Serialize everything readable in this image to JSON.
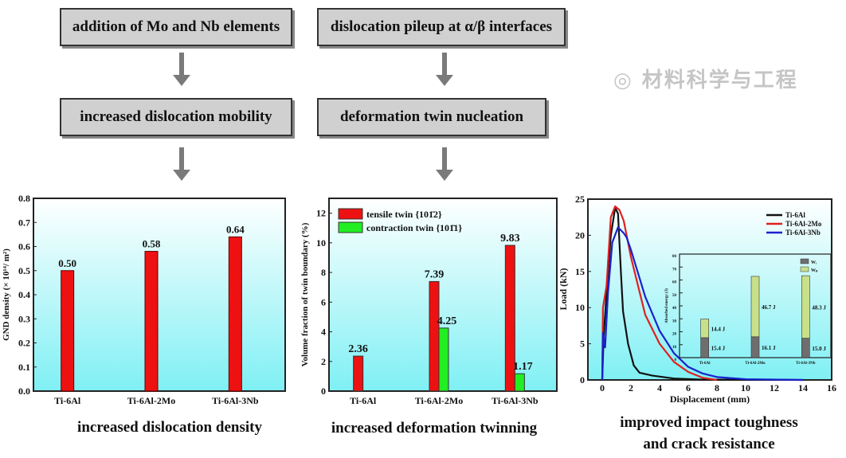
{
  "flow": {
    "box1": "addition of Mo and Nb elements",
    "box2": "dislocation pileup at α/β interfaces",
    "box3": "increased dislocation mobility",
    "box4": "deformation twin nucleation"
  },
  "captions": {
    "c1": "increased dislocation density",
    "c2": "increased deformation twinning",
    "c3a": "improved impact toughness",
    "c3b": "and crack resistance"
  },
  "watermark": "材料科学与工程",
  "chart_data": [
    {
      "type": "bar",
      "categories": [
        "Ti-6Al",
        "Ti-6Al-2Mo",
        "Ti-6Al-3Nb"
      ],
      "values": [
        0.5,
        0.58,
        0.64
      ],
      "labels": [
        "0.50",
        "0.58",
        "0.64"
      ],
      "ylabel": "GND density (× 10¹⁴/ m²)",
      "ylim": [
        0,
        0.8
      ],
      "yticks": [
        "0.0",
        "0.1",
        "0.2",
        "0.3",
        "0.4",
        "0.5",
        "0.6",
        "0.7",
        "0.8"
      ],
      "color": "#ee1111"
    },
    {
      "type": "bar",
      "categories": [
        "Ti-6Al",
        "Ti-6Al-2Mo",
        "Ti-6Al-3Nb"
      ],
      "ylabel": "Volume fraction of twin boundary (%)",
      "ylim": [
        0,
        13
      ],
      "yticks": [
        "0",
        "2",
        "4",
        "6",
        "8",
        "10",
        "12"
      ],
      "legend_position": "top-left",
      "series": [
        {
          "name": "tensile twin {101̄2}",
          "values": [
            2.36,
            7.39,
            9.83
          ],
          "labels": [
            "2.36",
            "7.39",
            "9.83"
          ],
          "color": "#ee1111"
        },
        {
          "name": "contraction twin {101̄1}",
          "values": [
            null,
            4.25,
            1.17
          ],
          "labels": [
            "",
            "4.25",
            "1.17"
          ],
          "color": "#22ee22"
        }
      ]
    },
    {
      "type": "line",
      "xlabel": "Displacement (mm)",
      "ylabel": "Load (kN)",
      "xlim": [
        -1,
        16
      ],
      "ylim": [
        0,
        25
      ],
      "xticks": [
        "0",
        "2",
        "4",
        "6",
        "8",
        "10",
        "12",
        "14",
        "16"
      ],
      "yticks": [
        "0",
        "5",
        "10",
        "15",
        "20",
        "25"
      ],
      "legend_position": "top-right",
      "series": [
        {
          "name": "Ti-6Al",
          "color": "#111111",
          "x": [
            0,
            0.1,
            0.3,
            0.6,
            0.9,
            1.1,
            1.3,
            1.45,
            1.8,
            2.2,
            2.6,
            3.5,
            5,
            7,
            14
          ],
          "y": [
            0,
            6,
            12,
            20,
            23.8,
            23,
            15,
            9.5,
            5,
            2,
            1,
            0.6,
            0.2,
            0.05,
            0
          ]
        },
        {
          "name": "Ti-6Al-2Mo",
          "color": "#e02020",
          "x": [
            0,
            0.05,
            0.3,
            0.6,
            0.9,
            1.2,
            1.5,
            2,
            3,
            4,
            5,
            6,
            7,
            8
          ],
          "y": [
            0,
            10,
            13,
            22.5,
            24,
            23.5,
            22,
            17,
            9,
            5,
            2.5,
            1.1,
            0.3,
            0
          ]
        },
        {
          "name": "Ti-6Al-3Nb",
          "color": "#1a22cc",
          "x": [
            0,
            0.05,
            0.2,
            0.4,
            0.7,
            1.1,
            1.5,
            1.7,
            2,
            3,
            4,
            5,
            6,
            7,
            8,
            10,
            14
          ],
          "y": [
            0,
            6.5,
            4.5,
            12,
            19,
            21.1,
            20.3,
            19.7,
            18,
            11.5,
            6.8,
            3.7,
            1.8,
            0.9,
            0.4,
            0.1,
            0
          ]
        }
      ],
      "inset": {
        "type": "stacked-bar",
        "categories": [
          "Ti-6Al",
          "Ti-6Al-2Mo",
          "Ti-6Al-3Nb"
        ],
        "ylabel": "Absorbed energy (J)",
        "ylim": [
          0,
          80
        ],
        "yticks": [
          "0",
          "10",
          "20",
          "30",
          "40",
          "50",
          "60",
          "70",
          "80"
        ],
        "series": [
          {
            "name": "Wᵢ",
            "values": [
              15.4,
              16.1,
              15.0
            ],
            "labels": [
              "15.4 J",
              "16.1 J",
              "15.0 J"
            ],
            "color": "#6e6e6e"
          },
          {
            "name": "Wₚ",
            "values": [
              14.4,
              46.7,
              48.3
            ],
            "labels": [
              "14.4 J",
              "46.7 J",
              "48.3 J"
            ],
            "color": "#c8e08a"
          }
        ]
      }
    }
  ]
}
